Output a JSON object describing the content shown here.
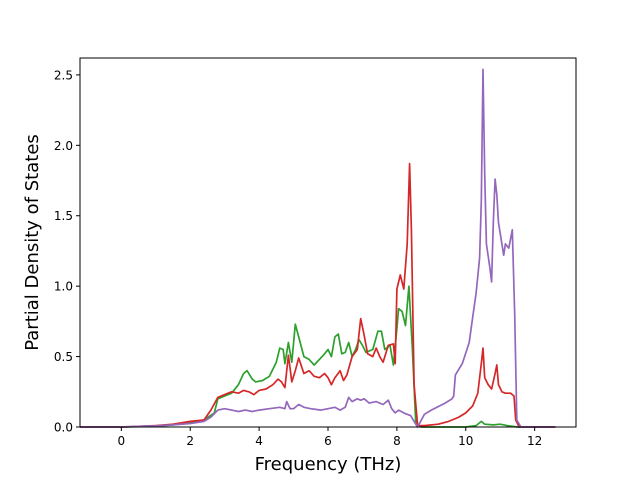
{
  "chart_data": {
    "type": "line",
    "title": "",
    "xlabel": "Frequency (THz)",
    "ylabel": "Partial Density of States",
    "xlim": [
      -1.2,
      13.2
    ],
    "ylim": [
      0.0,
      2.62
    ],
    "x_ticks": [
      "0",
      "2",
      "4",
      "6",
      "8",
      "10",
      "12"
    ],
    "y_ticks": [
      "0.0",
      "0.5",
      "1.0",
      "1.5",
      "2.0",
      "2.5"
    ],
    "grid": false,
    "legend": "none",
    "series": [
      {
        "color": "#2ca02c",
        "points": [
          [
            -1.2,
            0
          ],
          [
            0,
            0
          ],
          [
            0.5,
            0.003
          ],
          [
            1,
            0.006
          ],
          [
            1.5,
            0.015
          ],
          [
            2,
            0.03
          ],
          [
            2.4,
            0.05
          ],
          [
            2.7,
            0.1
          ],
          [
            2.8,
            0.2
          ],
          [
            3,
            0.22
          ],
          [
            3.2,
            0.24
          ],
          [
            3.4,
            0.3
          ],
          [
            3.55,
            0.38
          ],
          [
            3.65,
            0.4
          ],
          [
            3.8,
            0.34
          ],
          [
            3.9,
            0.32
          ],
          [
            4.1,
            0.33
          ],
          [
            4.3,
            0.36
          ],
          [
            4.5,
            0.46
          ],
          [
            4.6,
            0.56
          ],
          [
            4.7,
            0.55
          ],
          [
            4.75,
            0.45
          ],
          [
            4.85,
            0.6
          ],
          [
            4.95,
            0.46
          ],
          [
            5.05,
            0.73
          ],
          [
            5.15,
            0.64
          ],
          [
            5.3,
            0.5
          ],
          [
            5.45,
            0.48
          ],
          [
            5.6,
            0.44
          ],
          [
            5.75,
            0.48
          ],
          [
            5.9,
            0.52
          ],
          [
            6,
            0.55
          ],
          [
            6.1,
            0.5
          ],
          [
            6.2,
            0.64
          ],
          [
            6.3,
            0.66
          ],
          [
            6.4,
            0.52
          ],
          [
            6.5,
            0.53
          ],
          [
            6.6,
            0.6
          ],
          [
            6.7,
            0.5
          ],
          [
            6.8,
            0.55
          ],
          [
            6.9,
            0.62
          ],
          [
            7,
            0.58
          ],
          [
            7.1,
            0.53
          ],
          [
            7.3,
            0.55
          ],
          [
            7.45,
            0.68
          ],
          [
            7.55,
            0.68
          ],
          [
            7.65,
            0.55
          ],
          [
            7.8,
            0.58
          ],
          [
            7.9,
            0.44
          ],
          [
            8,
            0.7
          ],
          [
            8.05,
            0.84
          ],
          [
            8.15,
            0.82
          ],
          [
            8.25,
            0.72
          ],
          [
            8.35,
            1.0
          ],
          [
            8.45,
            0.55
          ],
          [
            8.55,
            0.02
          ],
          [
            8.7,
            0.0
          ],
          [
            10,
            0.0
          ],
          [
            10.3,
            0.01
          ],
          [
            10.45,
            0.04
          ],
          [
            10.55,
            0.02
          ],
          [
            10.8,
            0.015
          ],
          [
            11,
            0.02
          ],
          [
            11.2,
            0.01
          ],
          [
            11.5,
            0.0
          ],
          [
            12.6,
            0.0
          ]
        ]
      },
      {
        "color": "#d62728",
        "points": [
          [
            -1.2,
            0
          ],
          [
            0,
            0
          ],
          [
            0.5,
            0.004
          ],
          [
            1,
            0.01
          ],
          [
            1.5,
            0.02
          ],
          [
            2,
            0.04
          ],
          [
            2.4,
            0.05
          ],
          [
            2.6,
            0.12
          ],
          [
            2.8,
            0.21
          ],
          [
            3,
            0.23
          ],
          [
            3.2,
            0.25
          ],
          [
            3.4,
            0.24
          ],
          [
            3.55,
            0.26
          ],
          [
            3.7,
            0.25
          ],
          [
            3.85,
            0.23
          ],
          [
            4,
            0.26
          ],
          [
            4.2,
            0.27
          ],
          [
            4.4,
            0.3
          ],
          [
            4.55,
            0.34
          ],
          [
            4.65,
            0.32
          ],
          [
            4.75,
            0.28
          ],
          [
            4.85,
            0.51
          ],
          [
            4.95,
            0.32
          ],
          [
            5.05,
            0.4
          ],
          [
            5.15,
            0.49
          ],
          [
            5.3,
            0.38
          ],
          [
            5.45,
            0.4
          ],
          [
            5.6,
            0.36
          ],
          [
            5.75,
            0.35
          ],
          [
            5.9,
            0.38
          ],
          [
            6,
            0.35
          ],
          [
            6.1,
            0.3
          ],
          [
            6.2,
            0.35
          ],
          [
            6.35,
            0.4
          ],
          [
            6.45,
            0.33
          ],
          [
            6.55,
            0.37
          ],
          [
            6.7,
            0.5
          ],
          [
            6.85,
            0.55
          ],
          [
            6.95,
            0.77
          ],
          [
            7.05,
            0.65
          ],
          [
            7.15,
            0.52
          ],
          [
            7.3,
            0.5
          ],
          [
            7.4,
            0.56
          ],
          [
            7.5,
            0.5
          ],
          [
            7.6,
            0.46
          ],
          [
            7.75,
            0.58
          ],
          [
            7.9,
            0.59
          ],
          [
            7.95,
            0.45
          ],
          [
            8,
            0.98
          ],
          [
            8.1,
            1.08
          ],
          [
            8.2,
            0.98
          ],
          [
            8.3,
            1.3
          ],
          [
            8.37,
            1.87
          ],
          [
            8.42,
            1.4
          ],
          [
            8.5,
            0.3
          ],
          [
            8.6,
            0.01
          ],
          [
            8.8,
            0.01
          ],
          [
            9.2,
            0.02
          ],
          [
            9.5,
            0.04
          ],
          [
            9.8,
            0.07
          ],
          [
            10,
            0.1
          ],
          [
            10.2,
            0.15
          ],
          [
            10.35,
            0.24
          ],
          [
            10.45,
            0.45
          ],
          [
            10.5,
            0.56
          ],
          [
            10.55,
            0.35
          ],
          [
            10.65,
            0.3
          ],
          [
            10.75,
            0.27
          ],
          [
            10.85,
            0.38
          ],
          [
            10.9,
            0.44
          ],
          [
            10.95,
            0.3
          ],
          [
            11.05,
            0.25
          ],
          [
            11.15,
            0.24
          ],
          [
            11.3,
            0.24
          ],
          [
            11.4,
            0.22
          ],
          [
            11.45,
            0.05
          ],
          [
            11.55,
            0.0
          ],
          [
            12.6,
            0.0
          ]
        ]
      },
      {
        "color": "#9467bd",
        "points": [
          [
            -1.2,
            0
          ],
          [
            0,
            0
          ],
          [
            0.5,
            0.004
          ],
          [
            1,
            0.008
          ],
          [
            1.5,
            0.015
          ],
          [
            2,
            0.025
          ],
          [
            2.4,
            0.04
          ],
          [
            2.6,
            0.07
          ],
          [
            2.8,
            0.12
          ],
          [
            3,
            0.13
          ],
          [
            3.2,
            0.12
          ],
          [
            3.4,
            0.11
          ],
          [
            3.6,
            0.12
          ],
          [
            3.8,
            0.11
          ],
          [
            4,
            0.12
          ],
          [
            4.3,
            0.13
          ],
          [
            4.6,
            0.14
          ],
          [
            4.75,
            0.13
          ],
          [
            4.8,
            0.18
          ],
          [
            4.9,
            0.13
          ],
          [
            5,
            0.13
          ],
          [
            5.15,
            0.16
          ],
          [
            5.3,
            0.14
          ],
          [
            5.5,
            0.13
          ],
          [
            5.8,
            0.12
          ],
          [
            6,
            0.13
          ],
          [
            6.2,
            0.14
          ],
          [
            6.35,
            0.12
          ],
          [
            6.5,
            0.14
          ],
          [
            6.6,
            0.21
          ],
          [
            6.7,
            0.18
          ],
          [
            6.85,
            0.2
          ],
          [
            6.95,
            0.19
          ],
          [
            7.05,
            0.2
          ],
          [
            7.2,
            0.17
          ],
          [
            7.4,
            0.18
          ],
          [
            7.6,
            0.16
          ],
          [
            7.75,
            0.19
          ],
          [
            7.85,
            0.13
          ],
          [
            7.95,
            0.1
          ],
          [
            8.05,
            0.12
          ],
          [
            8.2,
            0.1
          ],
          [
            8.4,
            0.08
          ],
          [
            8.5,
            0.04
          ],
          [
            8.6,
            0.0
          ],
          [
            8.8,
            0.09
          ],
          [
            9,
            0.12
          ],
          [
            9.4,
            0.17
          ],
          [
            9.6,
            0.2
          ],
          [
            9.65,
            0.22
          ],
          [
            9.7,
            0.37
          ],
          [
            9.9,
            0.45
          ],
          [
            10.1,
            0.6
          ],
          [
            10.2,
            0.78
          ],
          [
            10.3,
            0.95
          ],
          [
            10.4,
            1.2
          ],
          [
            10.45,
            1.6
          ],
          [
            10.5,
            2.54
          ],
          [
            10.55,
            1.8
          ],
          [
            10.6,
            1.3
          ],
          [
            10.7,
            1.13
          ],
          [
            10.75,
            1.03
          ],
          [
            10.8,
            1.45
          ],
          [
            10.85,
            1.76
          ],
          [
            10.9,
            1.65
          ],
          [
            10.95,
            1.45
          ],
          [
            11.05,
            1.3
          ],
          [
            11.1,
            1.22
          ],
          [
            11.15,
            1.3
          ],
          [
            11.25,
            1.27
          ],
          [
            11.35,
            1.4
          ],
          [
            11.42,
            0.8
          ],
          [
            11.48,
            0.05
          ],
          [
            11.6,
            0.0
          ],
          [
            12.6,
            0.0
          ]
        ]
      }
    ]
  }
}
